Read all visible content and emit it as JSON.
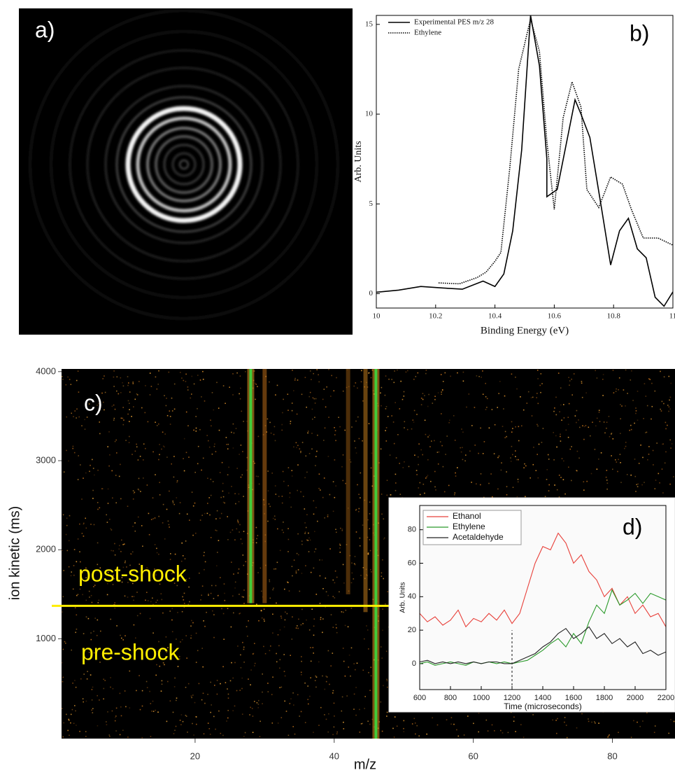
{
  "chart_data": [
    {
      "type": "image",
      "label": "a)"
    },
    {
      "type": "line",
      "label": "b)",
      "x_label": "Binding Energy (eV)",
      "y_label": "Arb. Units",
      "xlim": [
        10,
        11
      ],
      "ylim": [
        -0.8,
        15.5
      ],
      "xticks": [
        10,
        10.2,
        10.4,
        10.6,
        10.8,
        11
      ],
      "yticks": [
        0,
        5,
        10,
        15
      ],
      "legend": "upper left",
      "series": [
        {
          "name": "Experimental PES m/z 28",
          "color": "#000000",
          "style": "solid",
          "x": [
            10,
            10.075,
            10.15,
            10.24,
            10.29,
            10.36,
            10.4,
            10.43,
            10.46,
            10.49,
            10.52,
            10.55,
            10.575,
            10.575,
            10.61,
            10.67,
            10.69,
            10.72,
            10.76,
            10.79,
            10.82,
            10.85,
            10.88,
            10.91,
            10.94,
            10.97,
            11
          ],
          "values": [
            0.08,
            0.2,
            0.4,
            0.3,
            0.25,
            0.7,
            0.4,
            1.1,
            3.5,
            8,
            15.5,
            12.7,
            7.5,
            5.4,
            5.8,
            10.8,
            10,
            8.7,
            4.7,
            1.6,
            3.5,
            4.2,
            2.5,
            2,
            -0.2,
            -0.7,
            0.1
          ]
        },
        {
          "name": "Ethylene",
          "color": "#000000",
          "style": "dotted",
          "x": [
            10.21,
            10.28,
            10.34,
            10.37,
            10.4,
            10.42,
            10.45,
            10.48,
            10.52,
            10.55,
            10.575,
            10.6,
            10.63,
            10.66,
            10.69,
            10.71,
            10.75,
            10.79,
            10.83,
            10.86,
            10.9,
            10.95,
            11
          ],
          "values": [
            0.6,
            0.55,
            0.9,
            1.2,
            1.8,
            2.3,
            7,
            12.5,
            15.3,
            13.5,
            8.5,
            4.7,
            9.8,
            11.8,
            10.4,
            5.8,
            4.8,
            6.5,
            6.1,
            4.7,
            3.1,
            3.1,
            2.7
          ]
        }
      ]
    },
    {
      "type": "spectrogram",
      "label": "c)",
      "x_label": "m/z",
      "y_label": "ion kinetic (ms)",
      "xlim": [
        0.8,
        89
      ],
      "ylim": [
        -120,
        4030
      ],
      "xticks": [
        20,
        40,
        60,
        80
      ],
      "yticks": [
        1000,
        2000,
        3000,
        4000
      ],
      "bands": [
        {
          "x": 28,
          "from": 1400,
          "to": 4030,
          "color": "#3fd23c"
        },
        {
          "x": 30,
          "from": 1400,
          "to": 4030,
          "color": "#b86a18"
        },
        {
          "x": 42,
          "from": 1500,
          "to": 4030,
          "color": "#8a5210"
        },
        {
          "x": 44.5,
          "from": 1300,
          "to": 4030,
          "color": "#c07a1c"
        },
        {
          "x": 46,
          "from": -120,
          "to": 4030,
          "color": "#3fd23c"
        }
      ],
      "shock": {
        "value": 1370,
        "color": "#ffee00"
      },
      "annotations": [
        "post-shock",
        "pre-shock"
      ]
    },
    {
      "type": "line",
      "label": "d)",
      "x_label": "Time (microseconds)",
      "y_label": "Arb. Units",
      "xlim": [
        600,
        2200
      ],
      "ylim": [
        -15.5,
        94.5
      ],
      "xticks": [
        600,
        800,
        1000,
        1200,
        1400,
        1600,
        1800,
        2000,
        2200
      ],
      "yticks": [
        0,
        20,
        40,
        60,
        80
      ],
      "legend": "upper left",
      "marker_x": 1200,
      "x": [
        600,
        650,
        700,
        750,
        800,
        850,
        900,
        950,
        1000,
        1050,
        1100,
        1150,
        1200,
        1250,
        1300,
        1350,
        1400,
        1450,
        1500,
        1550,
        1600,
        1650,
        1700,
        1750,
        1800,
        1850,
        1900,
        1950,
        2000,
        2050,
        2100,
        2150,
        2200
      ],
      "series": [
        {
          "name": "Ethanol",
          "color": "#e8403a",
          "values": [
            30,
            25,
            28,
            23,
            26,
            32,
            22,
            27,
            25,
            30,
            26,
            32,
            24,
            30,
            45,
            60,
            70,
            68,
            78,
            72,
            60,
            65,
            55,
            50,
            40,
            45,
            35,
            40,
            30,
            35,
            28,
            30,
            22
          ]
        },
        {
          "name": "Ethylene",
          "color": "#2a9a2a",
          "values": [
            0,
            1,
            -1,
            0,
            1,
            0,
            -1,
            1,
            0,
            1,
            0,
            1,
            0,
            1,
            2,
            5,
            8,
            12,
            15,
            10,
            18,
            12,
            25,
            35,
            30,
            44,
            35,
            38,
            42,
            36,
            42,
            40,
            38
          ]
        },
        {
          "name": "Acetaldehyde",
          "color": "#222222",
          "values": [
            1,
            2,
            0,
            1,
            0,
            1,
            0,
            1,
            0,
            1,
            1,
            0,
            0,
            2,
            4,
            6,
            10,
            13,
            18,
            21,
            15,
            18,
            22,
            15,
            18,
            12,
            15,
            10,
            13,
            6,
            8,
            5,
            7
          ]
        }
      ]
    }
  ]
}
